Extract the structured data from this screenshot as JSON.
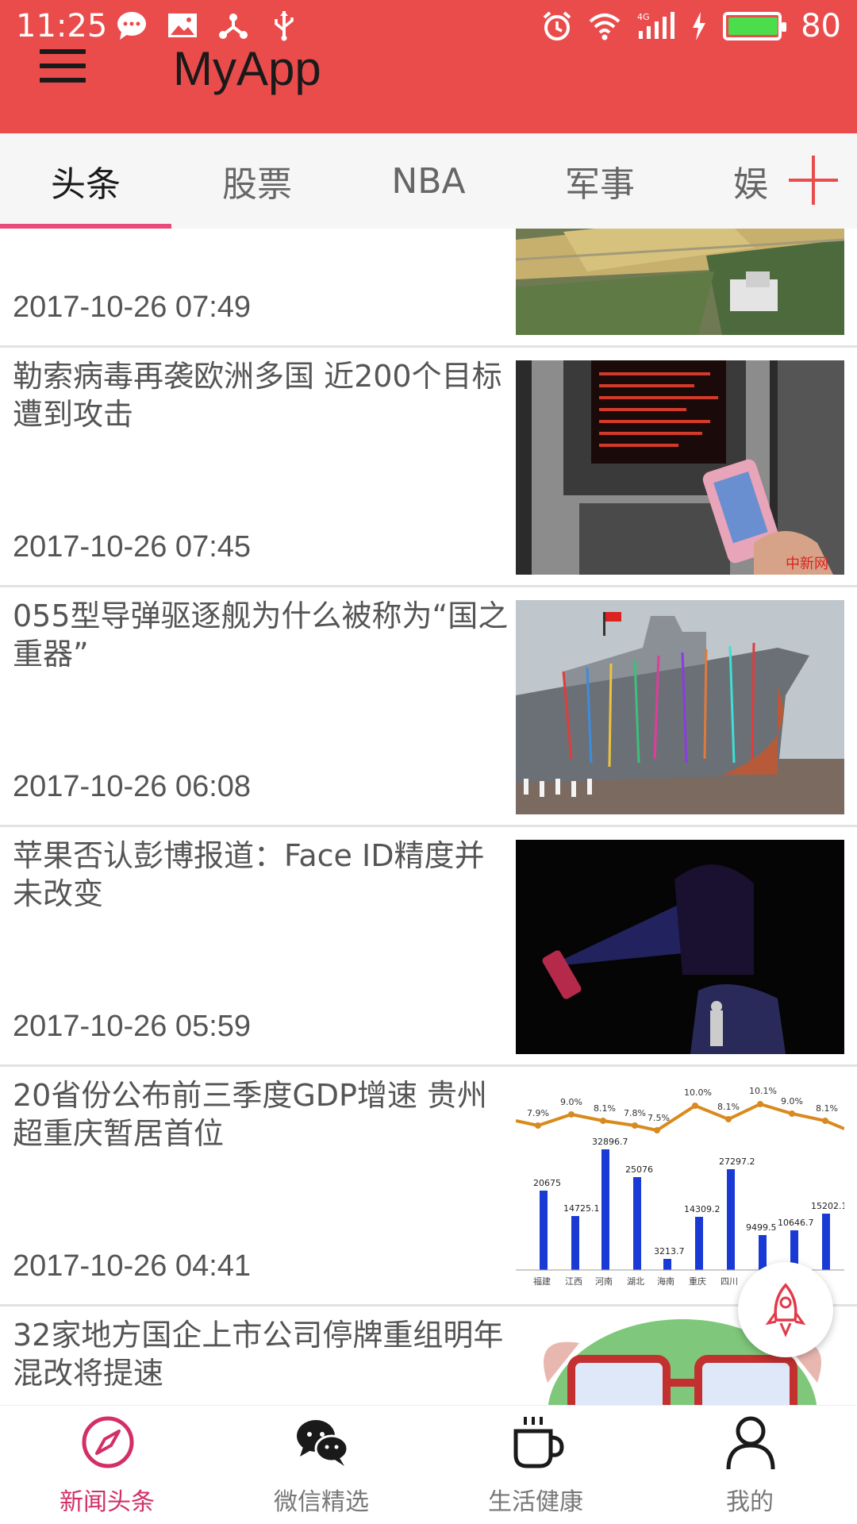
{
  "status_bar": {
    "time": "11:25",
    "battery": "80",
    "icons_left": [
      "message-icon",
      "image-icon",
      "share-icon",
      "usb-icon"
    ],
    "icons_right": [
      "alarm-icon",
      "wifi-icon",
      "signal-4g-icon",
      "charging-icon",
      "battery-icon"
    ]
  },
  "app": {
    "title": "MyApp",
    "menu_icon": "hamburger-menu-icon",
    "bar_color": "#ea4c4c"
  },
  "tabs": [
    {
      "label": "头条",
      "active": true
    },
    {
      "label": "股票",
      "active": false
    },
    {
      "label": "NBA",
      "active": false
    },
    {
      "label": "军事",
      "active": false
    },
    {
      "label": "娱",
      "active": false
    }
  ],
  "tab_add_icon": "plus-icon",
  "accent_color": "#e94a7c",
  "news": [
    {
      "title": "",
      "time": "2017-10-26 07:49",
      "image": "aerial-farmland-image"
    },
    {
      "title": "勒索病毒再袭欧洲多国 近200个目标遭到攻击",
      "time": "2017-10-26 07:45",
      "image": "ransomware-atm-image"
    },
    {
      "title": "055型导弹驱逐舰为什么被称为“国之重器”",
      "time": "2017-10-26 06:08",
      "image": "destroyer-launch-image"
    },
    {
      "title": "苹果否认彭博报道：Face ID精度并未改变",
      "time": "2017-10-26 05:59",
      "image": "face-id-image"
    },
    {
      "title": "20省份公布前三季度GDP增速 贵州超重庆暂居首位",
      "time": "2017-10-26 04:41",
      "image": "gdp-chart-image"
    },
    {
      "title": "32家地方国企上市公司停牌重组明年混改将提速",
      "time": "",
      "image": "cartoon-image"
    }
  ],
  "fab_icon": "rocket-icon",
  "bottom_nav": [
    {
      "label": "新闻头条",
      "icon": "compass-icon",
      "active": true
    },
    {
      "label": "微信精选",
      "icon": "wechat-icon",
      "active": false
    },
    {
      "label": "生活健康",
      "icon": "coffee-cup-icon",
      "active": false
    },
    {
      "label": "我的",
      "icon": "person-icon",
      "active": false
    }
  ]
}
